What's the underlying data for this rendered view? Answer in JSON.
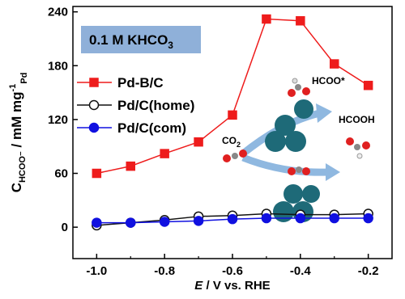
{
  "chart_data": {
    "type": "line",
    "x": [
      -1.0,
      -0.9,
      -0.8,
      -0.7,
      -0.6,
      -0.5,
      -0.4,
      -0.3,
      -0.2
    ],
    "series": [
      {
        "name": "Pd-B/C",
        "color": "#ee1c1c",
        "marker": "square",
        "filled": true,
        "values": [
          60,
          68,
          82,
          95,
          125,
          232,
          230,
          182,
          158
        ]
      },
      {
        "name": "Pd/C(home)",
        "color": "#111111",
        "marker": "circle",
        "filled": false,
        "values": [
          2,
          5,
          8,
          12,
          13,
          15,
          14,
          14,
          15
        ]
      },
      {
        "name": "Pd/C(com)",
        "color": "#1010e0",
        "marker": "circle",
        "filled": true,
        "values": [
          5,
          5,
          6,
          7,
          9,
          10,
          10,
          10,
          10
        ]
      }
    ],
    "xlim": [
      -1.07,
      -0.13
    ],
    "ylim": [
      -35,
      246
    ],
    "xticks": [
      {
        "value": -1.0,
        "label": "-1.0"
      },
      {
        "value": -0.8,
        "label": "-0.8"
      },
      {
        "value": -0.6,
        "label": "-0.6"
      },
      {
        "value": -0.4,
        "label": "-0.4"
      },
      {
        "value": -0.2,
        "label": "-0.2"
      }
    ],
    "xminor": [
      -0.9,
      -0.7,
      -0.5,
      -0.3
    ],
    "yticks": [
      0,
      60,
      120,
      180,
      240
    ],
    "xlabel": [
      "E",
      " / V vs. RHE"
    ],
    "ylabel": [
      "C",
      "HCOO⁻",
      " / mM mg",
      "-1",
      "Pd"
    ],
    "annotation": [
      "0.1 M KHCO",
      "3"
    ],
    "inset_labels": {
      "hcoo_ads": "HCOO*",
      "hcooh": "HCOOH",
      "co2": [
        "CO",
        "2"
      ]
    }
  }
}
